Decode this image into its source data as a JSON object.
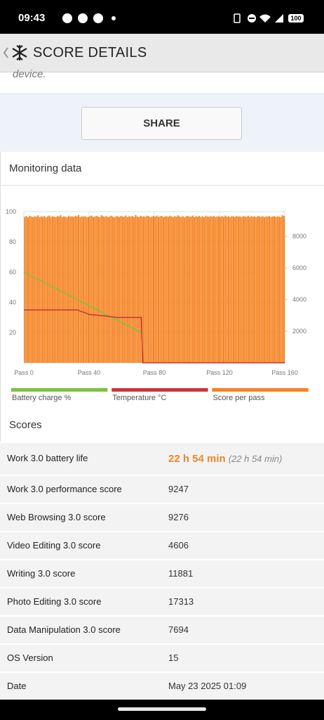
{
  "status_bar": {
    "time": "09:43",
    "battery": "100"
  },
  "header": {
    "title": "SCORE DETAILS"
  },
  "card_text": "device.",
  "share_button": "SHARE",
  "monitoring_title": "Monitoring data",
  "chart_data": {
    "type": "combo",
    "xlim": [
      0,
      160
    ],
    "xticks": [
      {
        "value": 0,
        "label": "Pass 0"
      },
      {
        "value": 40,
        "label": "Pass 40"
      },
      {
        "value": 80,
        "label": "Pass 80"
      },
      {
        "value": 120,
        "label": "Pass 120"
      },
      {
        "value": 160,
        "label": "Pass 160"
      }
    ],
    "ylim": [
      0,
      100
    ],
    "yticks": [
      20,
      40,
      60,
      80,
      100
    ],
    "y2lim": [
      0,
      9556
    ],
    "y2ticks": [
      2000,
      4000,
      6000,
      8000
    ],
    "grid": true,
    "legend": "bottom",
    "series": [
      {
        "name": "Battery charge %",
        "color": "#7cc242",
        "type": "line",
        "x": [
          0,
          72
        ],
        "values": [
          60,
          20
        ]
      },
      {
        "name": "Temperature °C",
        "color": "#c8373a",
        "type": "line",
        "x": [
          0,
          33,
          35,
          38,
          40,
          50,
          57,
          72,
          73,
          160
        ],
        "values": [
          35,
          35,
          34,
          33,
          32,
          31,
          30,
          30,
          0,
          0
        ]
      },
      {
        "name": "Score per pass",
        "color": "#f58220",
        "type": "bar",
        "axis": "y2",
        "values": [
          9230,
          9280,
          9190,
          9300,
          9250,
          9210,
          9270,
          9240,
          9320,
          9200,
          9260,
          9230,
          9290,
          9180,
          9250,
          9310,
          9220,
          9270,
          9240,
          9200,
          9280,
          9250,
          9330,
          9210,
          9260,
          9230,
          9190,
          9300,
          9240,
          9270,
          9220,
          9290,
          9250,
          9350,
          9210,
          9260,
          9240,
          9280,
          9200,
          9230,
          9270,
          9310,
          9220,
          9250,
          9290,
          9240,
          9200,
          9330,
          9260,
          9230,
          9280,
          9210,
          9250,
          9300,
          9240,
          9190,
          9270,
          9260,
          9220,
          9290,
          9250,
          9230,
          9310,
          9200,
          9270,
          9240,
          9280,
          9220,
          9350,
          9250,
          9210,
          9290,
          9240,
          9260,
          9230,
          9300,
          9270,
          9200,
          9250,
          9280,
          9240,
          9310,
          9220,
          9260,
          9290,
          9210,
          9250,
          9270,
          9230,
          9300,
          9260,
          9200,
          9280,
          9240,
          9320,
          9250,
          9220,
          9270,
          9190,
          9260,
          9290,
          9230,
          9250,
          9310,
          9210,
          9270,
          9240,
          9280,
          9220,
          9260,
          9200,
          9300,
          9250,
          9230,
          9270,
          9240,
          9290,
          9210,
          9260,
          9250,
          9230,
          9280,
          9220,
          9310,
          9240,
          9260,
          9200,
          9270,
          9250,
          9230,
          9290,
          9240,
          9260,
          9210,
          9280,
          9250,
          9230,
          9300,
          9220,
          9270,
          9240,
          9260,
          9210,
          9290,
          9250,
          9230,
          9270,
          9200,
          9260,
          9240,
          9280,
          9220,
          9250,
          9270,
          9230,
          9260,
          9240,
          9210,
          9330,
          9280
        ]
      }
    ]
  },
  "scores": {
    "title": "Scores",
    "rows": [
      {
        "label": "Work 3.0 battery life",
        "value": "22 h 54 min",
        "note": "(22 h 54 min)"
      },
      {
        "label": "Work 3.0 performance score",
        "value": "9247"
      },
      {
        "label": "Web Browsing 3.0 score",
        "value": "9276"
      },
      {
        "label": "Video Editing 3.0 score",
        "value": "4606"
      },
      {
        "label": "Writing 3.0 score",
        "value": "11881"
      },
      {
        "label": "Photo Editing 3.0 score",
        "value": "17313"
      },
      {
        "label": "Data Manipulation 3.0 score",
        "value": "7694"
      },
      {
        "label": "OS Version",
        "value": "15"
      },
      {
        "label": "Date",
        "value": "May 23 2025 01:09"
      }
    ]
  }
}
